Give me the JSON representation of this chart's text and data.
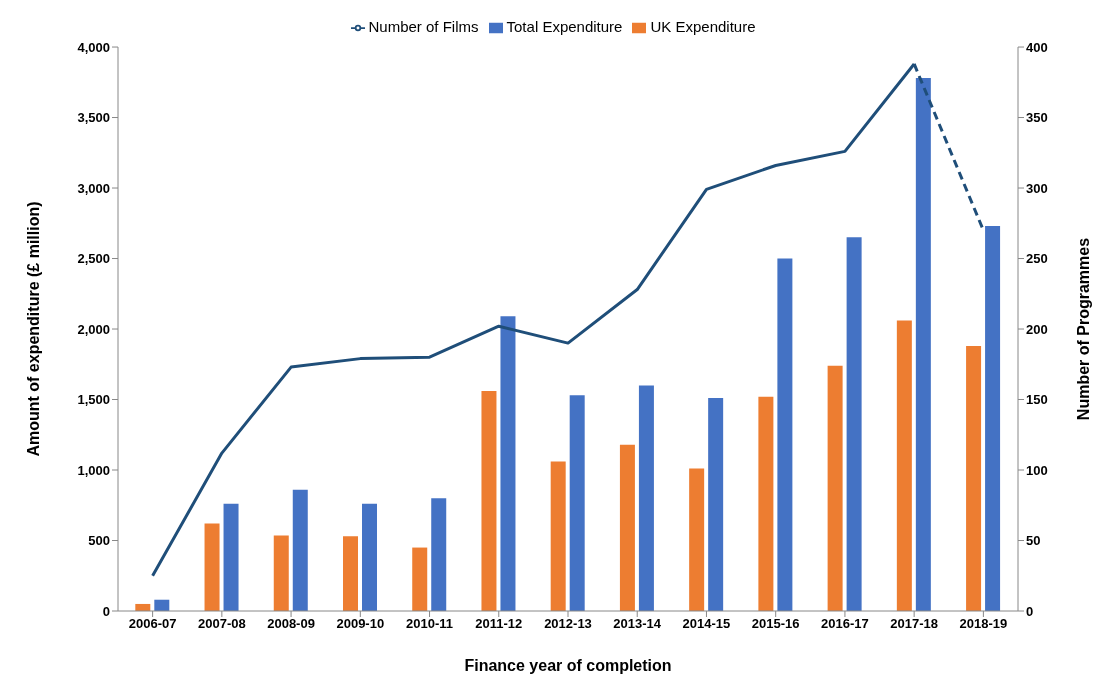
{
  "chart_data": {
    "type": "bar",
    "xlabel": "Finance year of completion",
    "ylabel": "Amount of expenditure (£ million)",
    "y2label": "Number of Programmes",
    "categories": [
      "2006-07",
      "2007-08",
      "2008-09",
      "2009-10",
      "2010-11",
      "2011-12",
      "2012-13",
      "2013-14",
      "2014-15",
      "2015-16",
      "2016-17",
      "2017-18",
      "2018-19"
    ],
    "series": [
      {
        "name": "UK Expenditure",
        "color": "#ed7d31",
        "values": [
          50,
          620,
          535,
          530,
          450,
          1560,
          1060,
          1180,
          1010,
          1520,
          1740,
          2060,
          1880
        ]
      },
      {
        "name": "Total Expenditure",
        "color": "#4472c4",
        "values": [
          80,
          760,
          860,
          760,
          800,
          2090,
          1530,
          1600,
          1510,
          2500,
          2650,
          3780,
          2730
        ]
      },
      {
        "name": "Number of Films",
        "type": "line",
        "axis": "y2",
        "color": "#1f4e79",
        "line_style": "solid",
        "values": [
          25,
          112,
          173,
          179,
          180,
          202,
          190,
          228,
          299,
          316,
          326,
          388,
          null
        ]
      },
      {
        "type": "line",
        "axis": "y2",
        "color": "#1f4e79",
        "line_style": "dashed",
        "values": [
          null,
          null,
          null,
          null,
          null,
          null,
          null,
          null,
          null,
          null,
          null,
          388,
          270
        ]
      }
    ],
    "ylim": [
      0,
      4000
    ],
    "yticks": [
      0,
      {
        "value": 500,
        "label": "500"
      },
      {
        "value": 1000,
        "label": "1,000"
      },
      {
        "value": 1500,
        "label": "1,500"
      },
      {
        "value": 2000,
        "label": "2,000"
      },
      {
        "value": 2500,
        "label": "2,500"
      },
      {
        "value": 3000,
        "label": "3,000"
      },
      {
        "value": 3500,
        "label": "3,500"
      },
      {
        "value": 4000,
        "label": "4,000"
      }
    ],
    "y2lim": [
      0,
      400
    ],
    "y2ticks": [
      0,
      50,
      100,
      150,
      200,
      250,
      300,
      350,
      400
    ],
    "grid": false,
    "legend": "top",
    "marker": "none"
  }
}
